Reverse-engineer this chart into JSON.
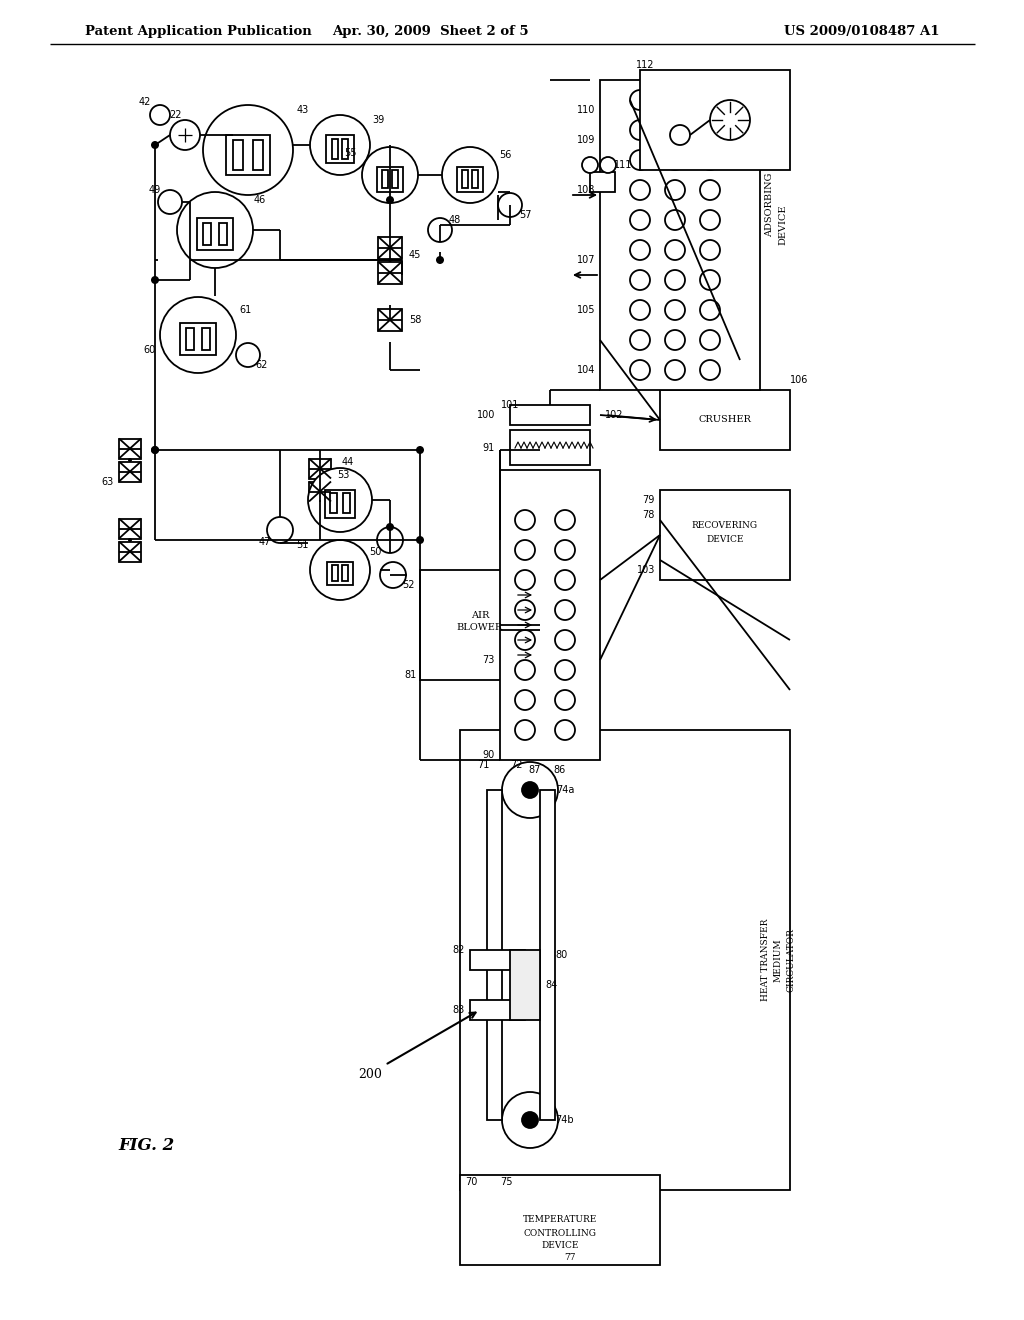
{
  "title_left": "Patent Application Publication",
  "title_center": "Apr. 30, 2009  Sheet 2 of 5",
  "title_right": "US 2009/0108487 A1",
  "fig_label": "FIG. 2",
  "bg_color": "#ffffff",
  "line_color": "#000000"
}
